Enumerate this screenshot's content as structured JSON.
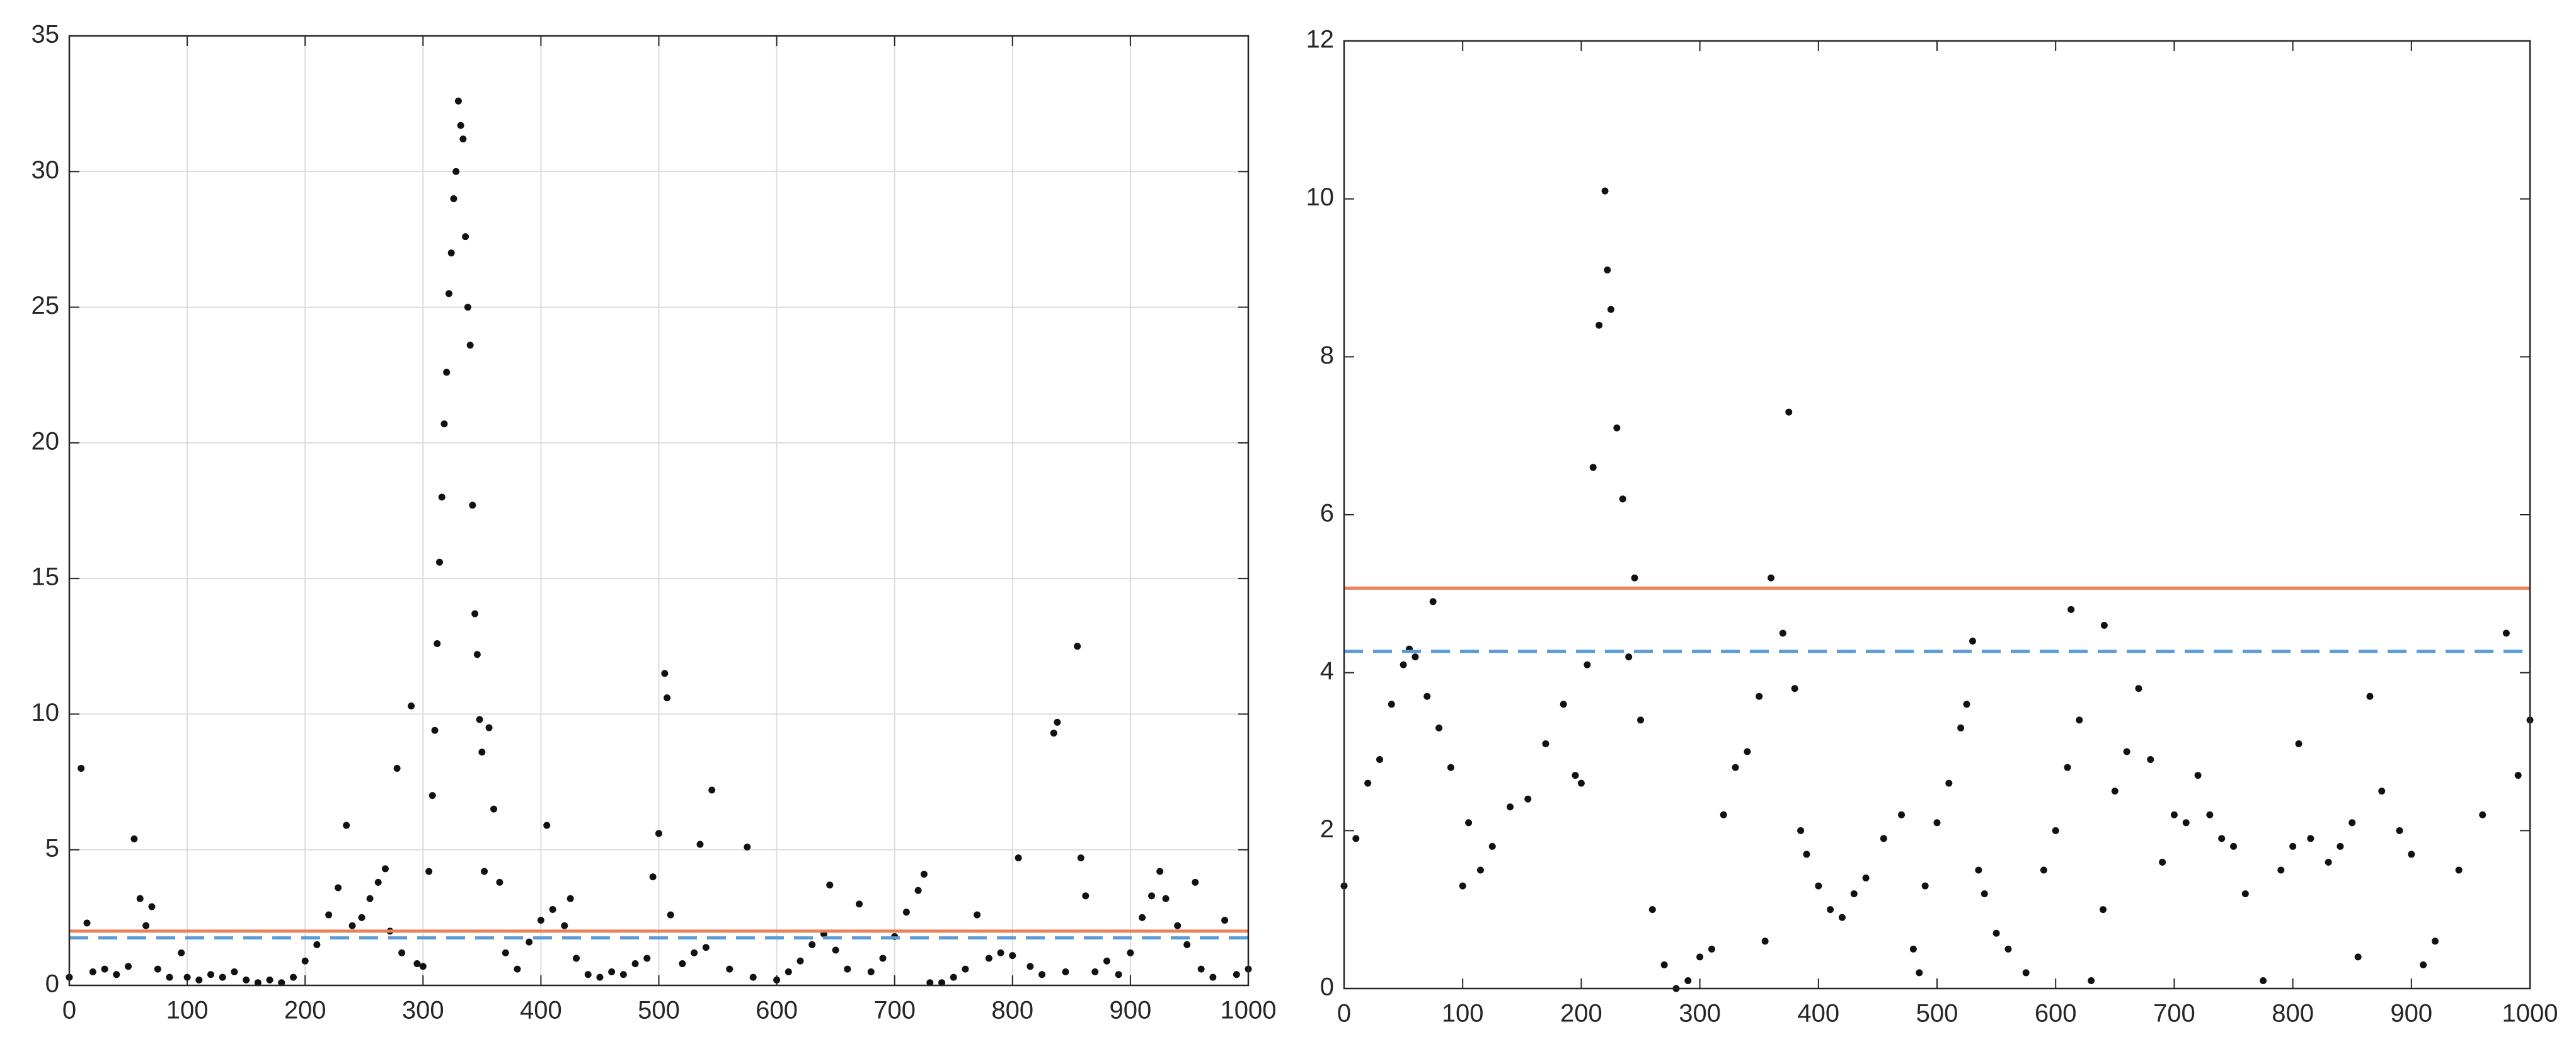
{
  "chart_data": [
    {
      "type": "scatter",
      "color": "#111111",
      "grid": true,
      "xlim": [
        0,
        1000
      ],
      "xticks": [
        0,
        100,
        200,
        300,
        400,
        500,
        600,
        700,
        800,
        900,
        1000
      ],
      "ylim": [
        0,
        35
      ],
      "yticks": [
        0,
        5,
        10,
        15,
        20,
        25,
        30,
        35
      ],
      "hlines": [
        {
          "value": 2.0,
          "color": "#e8825a",
          "style": "solid"
        },
        {
          "value": 1.75,
          "color": "#5b9bd5",
          "style": "dashed"
        }
      ],
      "x": [
        0,
        10,
        15,
        20,
        30,
        40,
        50,
        55,
        60,
        65,
        70,
        75,
        85,
        95,
        100,
        110,
        120,
        130,
        140,
        150,
        160,
        170,
        180,
        190,
        200,
        210,
        220,
        228,
        235,
        240,
        248,
        255,
        262,
        268,
        272,
        278,
        282,
        290,
        295,
        300,
        305,
        308,
        310,
        312,
        314,
        316,
        318,
        320,
        322,
        324,
        326,
        328,
        330,
        332,
        334,
        336,
        338,
        340,
        342,
        344,
        346,
        348,
        350,
        352,
        356,
        360,
        365,
        370,
        380,
        390,
        400,
        405,
        410,
        420,
        425,
        430,
        440,
        450,
        460,
        470,
        480,
        490,
        495,
        500,
        505,
        507,
        510,
        520,
        530,
        535,
        540,
        545,
        560,
        575,
        580,
        600,
        610,
        620,
        630,
        640,
        645,
        650,
        660,
        670,
        680,
        690,
        700,
        710,
        720,
        725,
        730,
        740,
        750,
        760,
        770,
        780,
        790,
        800,
        805,
        815,
        825,
        835,
        838,
        845,
        855,
        858,
        862,
        870,
        880,
        890,
        900,
        910,
        918,
        925,
        930,
        940,
        948,
        955,
        960,
        970,
        980,
        990,
        1000
      ],
      "values": [
        0.3,
        8.0,
        2.3,
        0.5,
        0.6,
        0.4,
        0.7,
        5.4,
        3.2,
        2.2,
        2.9,
        0.6,
        0.3,
        1.2,
        0.3,
        0.2,
        0.4,
        0.3,
        0.5,
        0.2,
        0.1,
        0.2,
        0.1,
        0.3,
        0.9,
        1.5,
        2.6,
        3.6,
        5.9,
        2.2,
        2.5,
        3.2,
        3.8,
        4.3,
        2.0,
        8.0,
        1.2,
        10.3,
        0.8,
        0.7,
        4.2,
        7.0,
        9.4,
        12.6,
        15.6,
        18.0,
        20.7,
        22.6,
        25.5,
        27.0,
        29.0,
        30.0,
        32.6,
        31.7,
        31.2,
        27.6,
        25.0,
        23.6,
        17.7,
        13.7,
        12.2,
        9.8,
        8.6,
        4.2,
        9.5,
        6.5,
        3.8,
        1.2,
        0.6,
        1.6,
        2.4,
        5.9,
        2.8,
        2.2,
        3.2,
        1.0,
        0.4,
        0.3,
        0.5,
        0.4,
        0.8,
        1.0,
        4.0,
        5.6,
        11.5,
        10.6,
        2.6,
        0.8,
        1.2,
        5.2,
        1.4,
        7.2,
        0.6,
        5.1,
        0.3,
        0.2,
        0.5,
        0.9,
        1.5,
        1.9,
        3.7,
        1.3,
        0.6,
        3.0,
        0.5,
        1.0,
        1.8,
        2.7,
        3.5,
        4.1,
        0.1,
        0.1,
        0.3,
        0.6,
        2.6,
        1.0,
        1.2,
        1.1,
        4.7,
        0.7,
        0.4,
        9.3,
        9.7,
        0.5,
        12.5,
        4.7,
        3.3,
        0.5,
        0.9,
        0.4,
        1.2,
        2.5,
        3.3,
        4.2,
        3.2,
        2.2,
        1.5,
        3.8,
        0.6,
        0.3,
        2.4,
        0.4,
        0.6
      ]
    },
    {
      "type": "scatter",
      "color": "#111111",
      "grid": false,
      "xlim": [
        0,
        1000
      ],
      "xticks": [
        0,
        100,
        200,
        300,
        400,
        500,
        600,
        700,
        800,
        900,
        1000
      ],
      "ylim": [
        0,
        12
      ],
      "yticks": [
        0,
        2,
        4,
        6,
        8,
        10,
        12
      ],
      "hlines": [
        {
          "value": 5.07,
          "color": "#e8825a",
          "style": "solid"
        },
        {
          "value": 4.27,
          "color": "#5b9bd5",
          "style": "dashed"
        }
      ],
      "x": [
        0,
        10,
        20,
        30,
        40,
        50,
        55,
        60,
        70,
        75,
        80,
        90,
        100,
        105,
        115,
        125,
        140,
        155,
        170,
        185,
        195,
        200,
        205,
        210,
        215,
        220,
        222,
        225,
        230,
        235,
        240,
        245,
        250,
        260,
        270,
        280,
        290,
        300,
        310,
        320,
        330,
        340,
        350,
        355,
        360,
        370,
        375,
        380,
        385,
        390,
        400,
        410,
        420,
        430,
        440,
        455,
        470,
        480,
        485,
        490,
        500,
        510,
        520,
        525,
        530,
        535,
        540,
        550,
        560,
        575,
        590,
        600,
        610,
        613,
        620,
        630,
        640,
        641,
        650,
        660,
        670,
        680,
        690,
        700,
        710,
        720,
        730,
        740,
        750,
        760,
        775,
        790,
        800,
        805,
        815,
        830,
        840,
        850,
        855,
        865,
        875,
        890,
        900,
        910,
        920,
        940,
        960,
        980,
        990,
        1000
      ],
      "values": [
        1.3,
        1.9,
        2.6,
        2.9,
        3.6,
        4.1,
        4.3,
        4.2,
        3.7,
        4.9,
        3.3,
        2.8,
        1.3,
        2.1,
        1.5,
        1.8,
        2.3,
        2.4,
        3.1,
        3.6,
        2.7,
        2.6,
        4.1,
        6.6,
        8.4,
        10.1,
        9.1,
        8.6,
        7.1,
        6.2,
        4.2,
        5.2,
        3.4,
        1.0,
        0.3,
        0.0,
        0.1,
        0.4,
        0.5,
        2.2,
        2.8,
        3.0,
        3.7,
        0.6,
        5.2,
        4.5,
        7.3,
        3.8,
        2.0,
        1.7,
        1.3,
        1.0,
        0.9,
        1.2,
        1.4,
        1.9,
        2.2,
        0.5,
        0.2,
        1.3,
        2.1,
        2.6,
        3.3,
        3.6,
        4.4,
        1.5,
        1.2,
        0.7,
        0.5,
        0.2,
        1.5,
        2.0,
        2.8,
        4.8,
        3.4,
        0.1,
        1.0,
        4.6,
        2.5,
        3.0,
        3.8,
        2.9,
        1.6,
        2.2,
        2.1,
        2.7,
        2.2,
        1.9,
        1.8,
        1.2,
        0.1,
        1.5,
        1.8,
        3.1,
        1.9,
        1.6,
        1.8,
        2.1,
        0.4,
        3.7,
        2.5,
        2.0,
        1.7,
        0.3,
        0.6,
        1.5,
        2.2,
        4.5,
        2.7,
        3.4
      ]
    }
  ]
}
